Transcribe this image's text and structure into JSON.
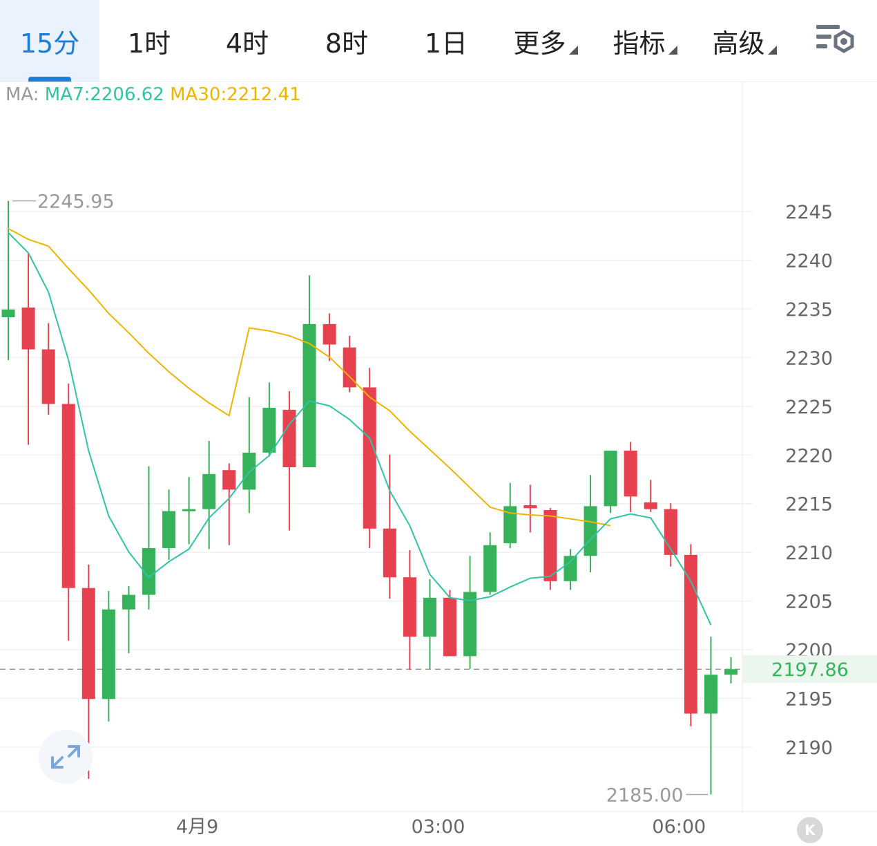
{
  "tabs": [
    {
      "label": "15分",
      "active": true
    },
    {
      "label": "1时"
    },
    {
      "label": "4时"
    },
    {
      "label": "8时"
    },
    {
      "label": "1日"
    },
    {
      "label": "更多",
      "dropdown": true
    },
    {
      "label": "指标",
      "dropdown": true
    },
    {
      "label": "高级",
      "dropdown": true
    }
  ],
  "icons": {
    "settings": "chart-settings-icon",
    "expand": "expand-arrows-icon",
    "k_button": "kline-k-icon"
  },
  "k_button_label": "K",
  "colors": {
    "up": "#36b35a",
    "down": "#e5414f",
    "ma7": "#2ec4a4",
    "ma30": "#f0b400",
    "accent": "#1c7ed6",
    "last_price": "#36b35a"
  },
  "legend": {
    "prefix": "MA:",
    "ma7": "MA7:2206.62",
    "ma30": "MA30:2212.41"
  },
  "chart_data": {
    "type": "candlestick",
    "y_ticks": [
      2245,
      2240,
      2235,
      2230,
      2225,
      2220,
      2215,
      2210,
      2205,
      2200,
      2195,
      2190
    ],
    "x_ticks": [
      {
        "label": "4月9",
        "index": 9
      },
      {
        "label": "03:00",
        "index": 21
      },
      {
        "label": "06:00",
        "index": 33
      }
    ],
    "ylim": [
      2183.5,
      2255.8
    ],
    "grid": true,
    "high_marker": "2245.95",
    "low_marker": "2185.00",
    "last_price": 2197.86,
    "last_price_label": "2197.86",
    "candles": [
      {
        "o": 2234.0,
        "h": 2245.95,
        "l": 2229.6,
        "c": 2234.8
      },
      {
        "o": 2235.0,
        "h": 2240.6,
        "l": 2220.9,
        "c": 2230.7
      },
      {
        "o": 2230.7,
        "h": 2233.4,
        "l": 2224.0,
        "c": 2225.1
      },
      {
        "o": 2225.1,
        "h": 2227.2,
        "l": 2200.8,
        "c": 2206.2
      },
      {
        "o": 2206.2,
        "h": 2208.6,
        "l": 2186.6,
        "c": 2194.8
      },
      {
        "o": 2194.8,
        "h": 2205.9,
        "l": 2192.5,
        "c": 2204.0
      },
      {
        "o": 2204.0,
        "h": 2206.4,
        "l": 2199.5,
        "c": 2205.5
      },
      {
        "o": 2205.5,
        "h": 2218.7,
        "l": 2204.0,
        "c": 2210.3
      },
      {
        "o": 2210.3,
        "h": 2216.3,
        "l": 2209.1,
        "c": 2214.1
      },
      {
        "o": 2214.3,
        "h": 2217.6,
        "l": 2210.7,
        "c": 2214.3
      },
      {
        "o": 2214.3,
        "h": 2221.3,
        "l": 2210.2,
        "c": 2217.9
      },
      {
        "o": 2218.3,
        "h": 2219.0,
        "l": 2210.6,
        "c": 2216.3
      },
      {
        "o": 2216.3,
        "h": 2225.8,
        "l": 2213.9,
        "c": 2220.1
      },
      {
        "o": 2220.1,
        "h": 2227.3,
        "l": 2219.7,
        "c": 2224.7
      },
      {
        "o": 2224.5,
        "h": 2226.4,
        "l": 2212.1,
        "c": 2218.6
      },
      {
        "o": 2218.6,
        "h": 2238.3,
        "l": 2218.6,
        "c": 2233.3
      },
      {
        "o": 2233.3,
        "h": 2234.4,
        "l": 2229.5,
        "c": 2231.2
      },
      {
        "o": 2230.9,
        "h": 2232.1,
        "l": 2226.3,
        "c": 2226.8
      },
      {
        "o": 2226.8,
        "h": 2228.8,
        "l": 2210.3,
        "c": 2212.3
      },
      {
        "o": 2212.3,
        "h": 2219.9,
        "l": 2205.1,
        "c": 2207.3
      },
      {
        "o": 2207.3,
        "h": 2210.1,
        "l": 2197.8,
        "c": 2201.2
      },
      {
        "o": 2201.2,
        "h": 2207.1,
        "l": 2197.9,
        "c": 2205.2
      },
      {
        "o": 2205.2,
        "h": 2206.0,
        "l": 2199.2,
        "c": 2199.2
      },
      {
        "o": 2199.2,
        "h": 2209.5,
        "l": 2197.9,
        "c": 2205.8
      },
      {
        "o": 2205.8,
        "h": 2211.9,
        "l": 2205.5,
        "c": 2210.6
      },
      {
        "o": 2210.8,
        "h": 2217.0,
        "l": 2210.3,
        "c": 2214.6
      },
      {
        "o": 2214.7,
        "h": 2216.8,
        "l": 2211.9,
        "c": 2214.4
      },
      {
        "o": 2214.2,
        "h": 2214.4,
        "l": 2206.0,
        "c": 2206.9
      },
      {
        "o": 2206.9,
        "h": 2210.2,
        "l": 2206.0,
        "c": 2209.5
      },
      {
        "o": 2209.5,
        "h": 2217.8,
        "l": 2207.8,
        "c": 2214.6
      },
      {
        "o": 2214.6,
        "h": 2220.3,
        "l": 2213.9,
        "c": 2220.3
      },
      {
        "o": 2220.3,
        "h": 2221.2,
        "l": 2214.0,
        "c": 2215.6
      },
      {
        "o": 2215.0,
        "h": 2217.3,
        "l": 2214.0,
        "c": 2214.3
      },
      {
        "o": 2214.3,
        "h": 2214.9,
        "l": 2208.4,
        "c": 2209.6
      },
      {
        "o": 2209.6,
        "h": 2210.7,
        "l": 2192.0,
        "c": 2193.3
      },
      {
        "o": 2193.3,
        "h": 2201.2,
        "l": 2185.0,
        "c": 2197.3
      },
      {
        "o": 2197.3,
        "h": 2199.1,
        "l": 2196.4,
        "c": 2197.86
      }
    ],
    "ma7": [
      2242.7,
      2240.6,
      2236.6,
      2229.6,
      2220.3,
      2213.6,
      2209.9,
      2207.3,
      2208.9,
      2210.2,
      2213.4,
      2215.4,
      2218.1,
      2219.8,
      2223.0,
      2225.4,
      2224.9,
      2223.5,
      2221.6,
      2216.2,
      2212.6,
      2207.6,
      2205.2,
      2204.9,
      2205.3,
      2206.3,
      2207.2,
      2207.4,
      2208.9,
      2211.2,
      2213.3,
      2213.8,
      2213.4,
      2210.2,
      2206.9,
      2202.4
    ],
    "ma30": [
      2243.1,
      2242.0,
      2241.3,
      2239.0,
      2236.8,
      2234.4,
      2232.4,
      2230.3,
      2228.4,
      2226.7,
      2225.2,
      2223.9,
      2232.9,
      2232.6,
      2232.1,
      2231.3,
      2229.9,
      2227.9,
      2225.8,
      2224.4,
      2222.3,
      2220.4,
      2218.5,
      2216.5,
      2214.5,
      2213.9,
      2213.7,
      2213.6,
      2213.3,
      2213.0,
      2212.6
    ]
  }
}
